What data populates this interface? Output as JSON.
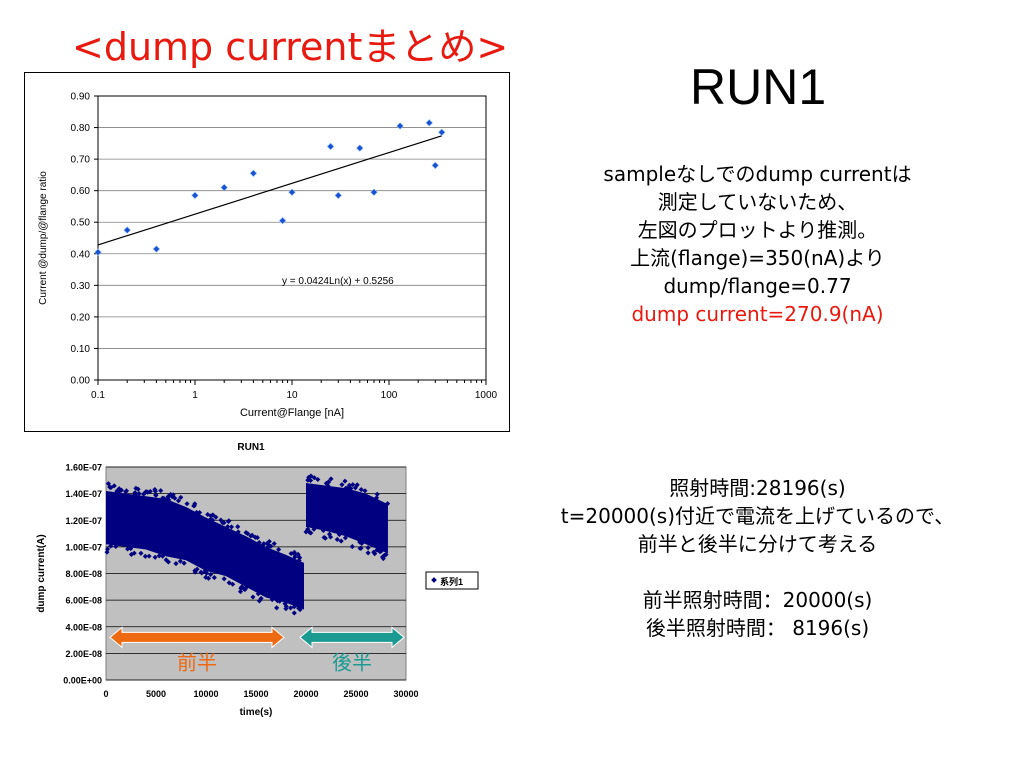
{
  "title": "<dump currentまとめ>",
  "run_label": "RUN1",
  "notes_top": [
    "sampleなしでのdump currentは",
    "測定していないため、",
    "左図のプロットより推測。",
    "上流(flange)=350(nA)より",
    "dump/flange=0.77",
    "dump current=270.9(nA)"
  ],
  "notes_bottom": [
    "照射時間:28196(s)",
    "t=20000(s)付近で電流を上げているので、",
    "前半と後半に分けて考える",
    "",
    "前半照射時間：20000(s)",
    "後半照射時間： 8196(s)"
  ],
  "colors": {
    "title": "#e8190f",
    "highlight": "#e8190f",
    "front_arrow": "#ee6a12",
    "back_arrow": "#1b9a92",
    "series": "#000080"
  },
  "chart_data": [
    {
      "type": "scatter",
      "xlabel": "Current@Flange [nA]",
      "ylabel": "Current @dump/@flange ratio",
      "xscale": "log",
      "xlim": [
        0.1,
        1000
      ],
      "ylim": [
        0,
        0.9
      ],
      "xticks": [
        "0.1",
        "1",
        "10",
        "100",
        "1000"
      ],
      "yticks": [
        "0.00",
        "0.10",
        "0.20",
        "0.30",
        "0.40",
        "0.50",
        "0.60",
        "0.70",
        "0.80",
        "0.90"
      ],
      "grid": "horizontal",
      "points": [
        {
          "x": 0.1,
          "y": 0.405
        },
        {
          "x": 0.2,
          "y": 0.475
        },
        {
          "x": 0.4,
          "y": 0.415
        },
        {
          "x": 1,
          "y": 0.585
        },
        {
          "x": 2,
          "y": 0.61
        },
        {
          "x": 4,
          "y": 0.655
        },
        {
          "x": 8,
          "y": 0.505
        },
        {
          "x": 10,
          "y": 0.595
        },
        {
          "x": 25,
          "y": 0.74
        },
        {
          "x": 30,
          "y": 0.585
        },
        {
          "x": 50,
          "y": 0.735
        },
        {
          "x": 70,
          "y": 0.595
        },
        {
          "x": 130,
          "y": 0.805
        },
        {
          "x": 260,
          "y": 0.815
        },
        {
          "x": 300,
          "y": 0.68
        },
        {
          "x": 350,
          "y": 0.785
        }
      ],
      "trendline": {
        "type": "log",
        "a": 0.0424,
        "b": 0.5256,
        "x_range": [
          0.1,
          350
        ]
      },
      "equation": "y = 0.0424Ln(x) + 0.5256"
    },
    {
      "type": "scatter",
      "title": "RUN1",
      "xlabel": "time(s)",
      "ylabel": "dump current(A)",
      "xlim": [
        0,
        30000
      ],
      "ylim": [
        0,
        1.6e-07
      ],
      "xticks": [
        "0",
        "5000",
        "10000",
        "15000",
        "20000",
        "25000",
        "30000"
      ],
      "yticks": [
        "0.00E+00",
        "2.00E-08",
        "4.00E-08",
        "6.00E-08",
        "8.00E-08",
        "1.00E-07",
        "1.20E-07",
        "1.40E-07",
        "1.60E-07"
      ],
      "grid": "horizontal",
      "legend": "right",
      "series": [
        {
          "name": "系列1",
          "bands": [
            {
              "t": 0,
              "low": 1.02e-07,
              "high": 1.42e-07
            },
            {
              "t": 2000,
              "low": 1e-07,
              "high": 1.4e-07
            },
            {
              "t": 4000,
              "low": 9.8e-08,
              "high": 1.38e-07
            },
            {
              "t": 6000,
              "low": 9.3e-08,
              "high": 1.36e-07
            },
            {
              "t": 8000,
              "low": 9e-08,
              "high": 1.3e-07
            },
            {
              "t": 10000,
              "low": 8.2e-08,
              "high": 1.22e-07
            },
            {
              "t": 12000,
              "low": 7.8e-08,
              "high": 1.15e-07
            },
            {
              "t": 14000,
              "low": 7e-08,
              "high": 1.08e-07
            },
            {
              "t": 16000,
              "low": 6.2e-08,
              "high": 1e-07
            },
            {
              "t": 18000,
              "low": 5.8e-08,
              "high": 9.4e-08
            },
            {
              "t": 19800,
              "low": 5.3e-08,
              "high": 8.8e-08
            },
            {
              "t": 20000,
              "low": 1.15e-07,
              "high": 1.48e-07
            },
            {
              "t": 22000,
              "low": 1.12e-07,
              "high": 1.46e-07
            },
            {
              "t": 24000,
              "low": 1.08e-07,
              "high": 1.44e-07
            },
            {
              "t": 26000,
              "low": 1.02e-07,
              "high": 1.4e-07
            },
            {
              "t": 28196,
              "low": 9.5e-08,
              "high": 1.32e-07
            }
          ]
        }
      ],
      "annotations": [
        {
          "label": "前半",
          "from": 0,
          "to": 18000
        },
        {
          "label": "後半",
          "from": 19000,
          "to": 30000
        }
      ]
    }
  ]
}
